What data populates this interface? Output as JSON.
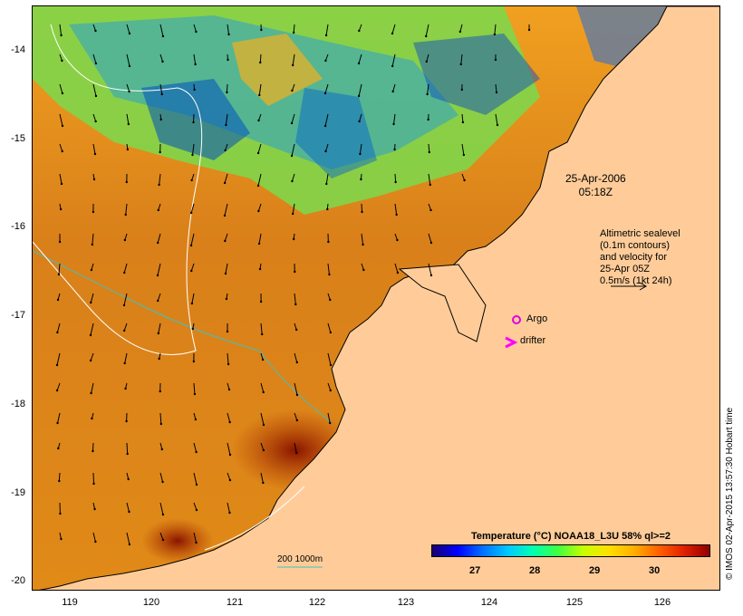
{
  "map": {
    "date": "25-Apr-2006",
    "time": "05:18Z",
    "altimetry_lines": [
      "Altimetric sealevel",
      "(0.1m contours)",
      "and velocity for",
      "25-Apr 05Z",
      "0.5m/s (1kt 24h)"
    ],
    "argo_label": "Argo",
    "drifter_label": "drifter",
    "depth_legend": "200  1000m",
    "legend_title": "Temperature (°C) NOAA18_L3U 58% ql>=2",
    "colorbar_ticks": [
      "27",
      "28",
      "29",
      "30"
    ],
    "lat_ticks": [
      "-14",
      "-15",
      "-16",
      "-17",
      "-18",
      "-19",
      "-20"
    ],
    "lon_ticks": [
      "119",
      "120",
      "121",
      "122",
      "123",
      "124",
      "125",
      "126"
    ],
    "credit": "© IMOS 02-Apr-2015 13:57:30 Hobart time",
    "colors": {
      "land": "#ffcc99",
      "ocean_warm": "#d26a10",
      "ocean_hot": "#9a1e00",
      "contour_200": "#ffffff",
      "contour_1000": "#40c0c0",
      "argo": "#e000e0",
      "drifter": "#ff00ff"
    }
  }
}
